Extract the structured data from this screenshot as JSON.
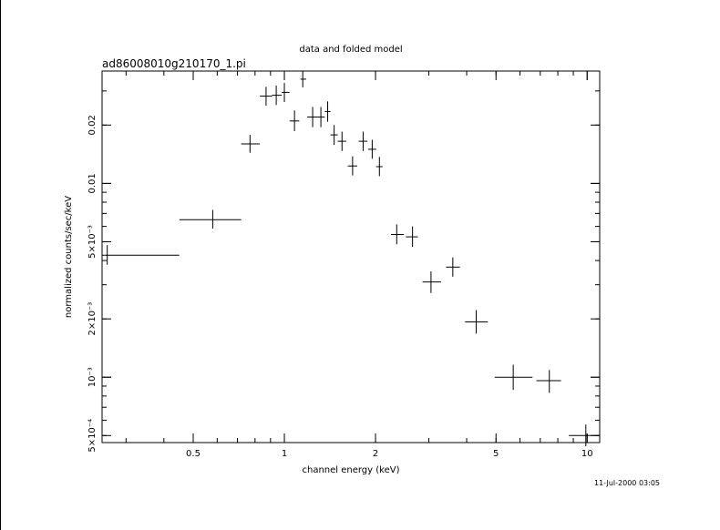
{
  "chart_data": {
    "type": "scatter",
    "title": "data and folded model",
    "subtitle": "ad86008010g210170_1.pi",
    "xlabel": "channel energy (keV)",
    "ylabel": "normalized counts/sec/keV",
    "timestamp": "11-Jul-2000 03:05",
    "x_scale": "log",
    "y_scale": "log",
    "xlim": [
      0.25,
      11
    ],
    "ylim": [
      0.00046,
      0.038
    ],
    "x_ticks": [
      {
        "v": 0.5,
        "label": "0.5"
      },
      {
        "v": 1,
        "label": "1"
      },
      {
        "v": 2,
        "label": "2"
      },
      {
        "v": 5,
        "label": "5"
      },
      {
        "v": 10,
        "label": "10"
      }
    ],
    "y_ticks": [
      {
        "v": 0.0005,
        "label": "5×10⁻⁴"
      },
      {
        "v": 0.001,
        "label": "10⁻³"
      },
      {
        "v": 0.002,
        "label": "2×10⁻³"
      },
      {
        "v": 0.005,
        "label": "5×10⁻³"
      },
      {
        "v": 0.01,
        "label": "0.01"
      },
      {
        "v": 0.02,
        "label": "0.02"
      }
    ],
    "series": [
      {
        "points": [
          {
            "x": 0.26,
            "y": 0.00426,
            "xlo": 0.25,
            "xhi": 0.45,
            "ylo": 0.0038,
            "yhi": 0.0048
          },
          {
            "x": 0.58,
            "y": 0.0065,
            "xlo": 0.45,
            "xhi": 0.72,
            "ylo": 0.00585,
            "yhi": 0.0073
          },
          {
            "x": 0.77,
            "y": 0.016,
            "xlo": 0.72,
            "xhi": 0.83,
            "ylo": 0.0144,
            "yhi": 0.0178
          },
          {
            "x": 0.87,
            "y": 0.0282,
            "xlo": 0.83,
            "xhi": 0.91,
            "ylo": 0.0252,
            "yhi": 0.0315
          },
          {
            "x": 0.94,
            "y": 0.0285,
            "xlo": 0.91,
            "xhi": 0.98,
            "ylo": 0.0254,
            "yhi": 0.032
          },
          {
            "x": 1.0,
            "y": 0.0295,
            "xlo": 0.98,
            "xhi": 1.04,
            "ylo": 0.0263,
            "yhi": 0.033
          },
          {
            "x": 1.08,
            "y": 0.021,
            "xlo": 1.04,
            "xhi": 1.12,
            "ylo": 0.0186,
            "yhi": 0.0238
          },
          {
            "x": 1.15,
            "y": 0.0345,
            "xlo": 1.13,
            "xhi": 1.18,
            "ylo": 0.0313,
            "yhi": 0.038
          },
          {
            "x": 1.24,
            "y": 0.022,
            "xlo": 1.19,
            "xhi": 1.29,
            "ylo": 0.0195,
            "yhi": 0.0248
          },
          {
            "x": 1.32,
            "y": 0.022,
            "xlo": 1.29,
            "xhi": 1.36,
            "ylo": 0.0195,
            "yhi": 0.0248
          },
          {
            "x": 1.39,
            "y": 0.0235,
            "xlo": 1.36,
            "xhi": 1.42,
            "ylo": 0.0208,
            "yhi": 0.0265
          },
          {
            "x": 1.46,
            "y": 0.0178,
            "xlo": 1.42,
            "xhi": 1.5,
            "ylo": 0.0158,
            "yhi": 0.02
          },
          {
            "x": 1.55,
            "y": 0.0165,
            "xlo": 1.5,
            "xhi": 1.6,
            "ylo": 0.0147,
            "yhi": 0.0185
          },
          {
            "x": 1.68,
            "y": 0.0123,
            "xlo": 1.62,
            "xhi": 1.74,
            "ylo": 0.011,
            "yhi": 0.0138
          },
          {
            "x": 1.82,
            "y": 0.0165,
            "xlo": 1.76,
            "xhi": 1.88,
            "ylo": 0.0147,
            "yhi": 0.0185
          },
          {
            "x": 1.95,
            "y": 0.015,
            "xlo": 1.89,
            "xhi": 2.01,
            "ylo": 0.0134,
            "yhi": 0.0168
          },
          {
            "x": 2.06,
            "y": 0.0122,
            "xlo": 2.01,
            "xhi": 2.11,
            "ylo": 0.0109,
            "yhi": 0.0137
          },
          {
            "x": 2.35,
            "y": 0.00545,
            "xlo": 2.25,
            "xhi": 2.48,
            "ylo": 0.00485,
            "yhi": 0.00615
          },
          {
            "x": 2.65,
            "y": 0.0053,
            "xlo": 2.52,
            "xhi": 2.76,
            "ylo": 0.0047,
            "yhi": 0.006
          },
          {
            "x": 3.05,
            "y": 0.0031,
            "xlo": 2.86,
            "xhi": 3.29,
            "ylo": 0.00272,
            "yhi": 0.00352
          },
          {
            "x": 3.6,
            "y": 0.0037,
            "xlo": 3.42,
            "xhi": 3.8,
            "ylo": 0.0033,
            "yhi": 0.00415
          },
          {
            "x": 4.3,
            "y": 0.00193,
            "xlo": 3.95,
            "xhi": 4.7,
            "ylo": 0.00168,
            "yhi": 0.00222
          },
          {
            "x": 5.7,
            "y": 0.001,
            "xlo": 4.95,
            "xhi": 6.6,
            "ylo": 0.00086,
            "yhi": 0.00116
          },
          {
            "x": 7.5,
            "y": 0.00096,
            "xlo": 6.8,
            "xhi": 8.2,
            "ylo": 0.00083,
            "yhi": 0.00109
          },
          {
            "x": 9.9,
            "y": 0.0005,
            "xlo": 8.7,
            "xhi": 11.0,
            "ylo": 0.00044,
            "yhi": 0.00057
          }
        ]
      }
    ]
  }
}
